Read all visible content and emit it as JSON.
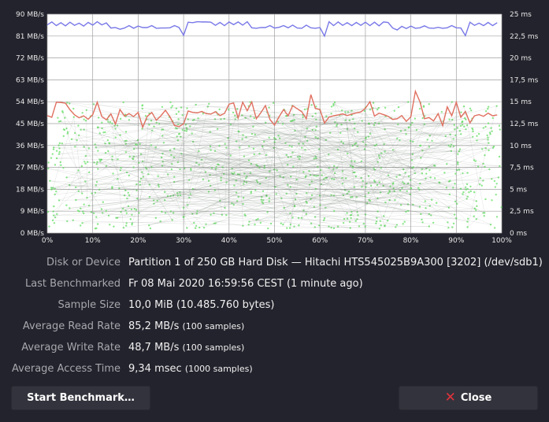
{
  "chart_data": {
    "type": "line",
    "left_axis": {
      "unit": "MB/s",
      "range": [
        0,
        90
      ],
      "ticks": [
        "0 MB/s",
        "9 MB/s",
        "18 MB/s",
        "27 MB/s",
        "36 MB/s",
        "45 MB/s",
        "54 MB/s",
        "63 MB/s",
        "72 MB/s",
        "81 MB/s",
        "90 MB/s"
      ]
    },
    "right_axis": {
      "unit": "ms",
      "range": [
        0,
        25
      ],
      "ticks": [
        "0 ms",
        "2,5 ms",
        "5 ms",
        "7,5 ms",
        "10 ms",
        "12,5 ms",
        "15 ms",
        "17,5 ms",
        "20 ms",
        "22,5 ms",
        "25 ms"
      ]
    },
    "x_axis": {
      "range": [
        0,
        100
      ],
      "ticks": [
        "0%",
        "10%",
        "20%",
        "30%",
        "40%",
        "50%",
        "60%",
        "70%",
        "80%",
        "90%",
        "100%"
      ]
    },
    "grid": true,
    "colors": {
      "read": "#7878e8",
      "write": "#e07060",
      "access": "#66e066",
      "background": "#ffffff",
      "grid": "#a0a0a0"
    },
    "series": [
      {
        "key": "read",
        "x": [
          0,
          1,
          2,
          3,
          4,
          5,
          6,
          7,
          8,
          9,
          10,
          11,
          12,
          13,
          14,
          15,
          16,
          17,
          18,
          19,
          20,
          21,
          22,
          23,
          24,
          25,
          26,
          27,
          28,
          29,
          30,
          31,
          32,
          33,
          34,
          35,
          36,
          37,
          38,
          39,
          40,
          41,
          42,
          43,
          44,
          45,
          46,
          47,
          48,
          49,
          50,
          51,
          52,
          53,
          54,
          55,
          56,
          57,
          58,
          59,
          60,
          61,
          62,
          63,
          64,
          65,
          66,
          67,
          68,
          69,
          70,
          71,
          72,
          73,
          74,
          75,
          76,
          77,
          78,
          79,
          80,
          81,
          82,
          83,
          84,
          85,
          86,
          87,
          88,
          89,
          90,
          91,
          92,
          93,
          94,
          95,
          96,
          97,
          98,
          99
        ],
        "values": [
          85.6,
          86.8,
          85.3,
          86.5,
          85.2,
          86.7,
          85.4,
          86.3,
          85.1,
          86.6,
          85.5,
          86.9,
          85.6,
          86.4,
          84.3,
          84.5,
          83.8,
          84.3,
          85.3,
          84.2,
          85.1,
          84.5,
          84.5,
          85.3,
          84.2,
          84.3,
          84.3,
          84.4,
          85.3,
          84.5,
          81.3,
          86.7,
          86.5,
          86.9,
          86.8,
          86.8,
          86.7,
          85.4,
          86.6,
          85.3,
          86.8,
          85.7,
          86.8,
          85.5,
          86.9,
          84.4,
          84.2,
          84.5,
          84.5,
          85.3,
          84.3,
          84.6,
          85.3,
          84.4,
          85.5,
          84.3,
          84.2,
          85.5,
          84.4,
          84.2,
          84.5,
          81.0,
          86.9,
          85.3,
          86.8,
          85.4,
          86.5,
          85.3,
          86.6,
          85.4,
          86.7,
          85.3,
          86.7,
          85.2,
          86.8,
          86.6,
          84.3,
          83.5,
          85.0,
          84.1,
          85.1,
          84.2,
          84.4,
          85.2,
          84.3,
          84.2,
          84.6,
          84.2,
          84.4,
          85.3,
          84.4,
          84.3,
          81.2,
          86.7,
          85.4,
          86.3,
          85.3,
          86.6,
          85.3,
          86.5
        ]
      },
      {
        "key": "write",
        "x": [
          0,
          1,
          2,
          3,
          4,
          5,
          6,
          7,
          8,
          9,
          10,
          11,
          12,
          13,
          14,
          15,
          16,
          17,
          18,
          19,
          20,
          21,
          22,
          23,
          24,
          25,
          26,
          27,
          28,
          29,
          30,
          31,
          32,
          33,
          34,
          35,
          36,
          37,
          38,
          39,
          40,
          41,
          42,
          43,
          44,
          45,
          46,
          47,
          48,
          49,
          50,
          51,
          52,
          53,
          54,
          55,
          56,
          57,
          58,
          59,
          60,
          61,
          62,
          63,
          64,
          65,
          66,
          67,
          68,
          69,
          70,
          71,
          72,
          73,
          74,
          75,
          76,
          77,
          78,
          79,
          80,
          81,
          82,
          83,
          84,
          85,
          86,
          87,
          88,
          89,
          90,
          91,
          92,
          93,
          94,
          95,
          96,
          97,
          98,
          99
        ],
        "values": [
          48.3,
          47.6,
          53.8,
          53.7,
          53.4,
          50.7,
          48.6,
          47.4,
          48.2,
          46.8,
          48.7,
          53.8,
          47.9,
          46.6,
          49.0,
          44.8,
          50.8,
          48.1,
          49.1,
          47.9,
          49.6,
          43.5,
          48.0,
          49.6,
          46.4,
          48.2,
          50.5,
          47.8,
          44.2,
          43.8,
          44.9,
          50.2,
          49.6,
          49.4,
          50.0,
          49.1,
          48.9,
          49.9,
          48.3,
          49.2,
          53.0,
          53.5,
          47.3,
          53.8,
          50.3,
          53.9,
          47.0,
          49.5,
          52.4,
          46.7,
          44.4,
          47.8,
          50.8,
          48.2,
          52.4,
          51.1,
          49.9,
          47.0,
          56.9,
          51.2,
          50.8,
          45.2,
          47.7,
          48.2,
          48.6,
          49.0,
          48.3,
          48.9,
          49.4,
          49.8,
          51.3,
          54.0,
          48.1,
          49.3,
          48.7,
          48.0,
          46.7,
          47.0,
          48.3,
          45.9,
          47.8,
          58.3,
          54.0,
          47.0,
          47.5,
          46.1,
          49.1,
          44.2,
          51.9,
          48.2,
          53.8,
          47.6,
          50.0,
          45.3,
          48.2,
          48.7,
          48.0,
          49.3,
          48.2,
          48.6
        ]
      },
      {
        "key": "access",
        "unit": "ms",
        "samples": 1000,
        "range_ms": [
          0,
          15
        ]
      }
    ]
  },
  "info": [
    {
      "label": "Disk or Device",
      "value": "Partition 1 of 250 GB Hard Disk — Hitachi HTS545025B9A300 [3202] (/dev/sdb1)",
      "note": ""
    },
    {
      "label": "Last Benchmarked",
      "value": "Fr 08 Mai 2020 16:59:56 CEST (1 minute ago)",
      "note": ""
    },
    {
      "label": "Sample Size",
      "value": "10,0 MiB (10.485.760 bytes)",
      "note": ""
    },
    {
      "label": "Average Read Rate",
      "value": "85,2 MB/s",
      "note": "(100 samples)"
    },
    {
      "label": "Average Write Rate",
      "value": "48,7 MB/s",
      "note": "(100 samples)"
    },
    {
      "label": "Average Access Time",
      "value": "9,34 msec",
      "note": "(1000 samples)"
    }
  ],
  "buttons": {
    "start": "Start Benchmark…",
    "close": "Close",
    "close_icon": "close-x-icon"
  }
}
